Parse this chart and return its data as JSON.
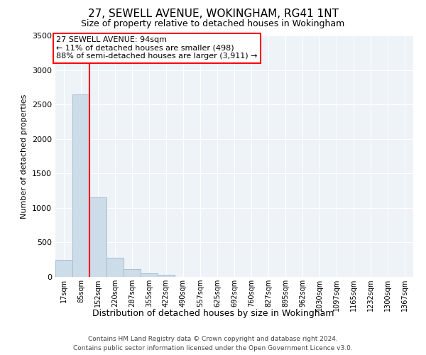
{
  "title": "27, SEWELL AVENUE, WOKINGHAM, RG41 1NT",
  "subtitle": "Size of property relative to detached houses in Wokingham",
  "xlabel": "Distribution of detached houses by size in Wokingham",
  "ylabel": "Number of detached properties",
  "categories": [
    "17sqm",
    "85sqm",
    "152sqm",
    "220sqm",
    "287sqm",
    "355sqm",
    "422sqm",
    "490sqm",
    "557sqm",
    "625sqm",
    "692sqm",
    "760sqm",
    "827sqm",
    "895sqm",
    "962sqm",
    "1030sqm",
    "1097sqm",
    "1165sqm",
    "1232sqm",
    "1300sqm",
    "1367sqm"
  ],
  "values": [
    250,
    2650,
    1150,
    280,
    110,
    50,
    30,
    0,
    0,
    0,
    0,
    0,
    0,
    0,
    0,
    0,
    0,
    0,
    0,
    0,
    0
  ],
  "bar_color": "#cddce9",
  "bar_edgecolor": "#a0b8cc",
  "vline_x_index": 1.5,
  "vline_color": "red",
  "annotation_text": "27 SEWELL AVENUE: 94sqm\n← 11% of detached houses are smaller (498)\n88% of semi-detached houses are larger (3,911) →",
  "annotation_box_color": "white",
  "annotation_box_edgecolor": "red",
  "ylim": [
    0,
    3500
  ],
  "yticks": [
    0,
    500,
    1000,
    1500,
    2000,
    2500,
    3000,
    3500
  ],
  "title_fontsize": 11,
  "subtitle_fontsize": 9,
  "tick_fontsize": 8,
  "ylabel_fontsize": 8,
  "footer_line1": "Contains HM Land Registry data © Crown copyright and database right 2024.",
  "footer_line2": "Contains public sector information licensed under the Open Government Licence v3.0.",
  "background_color": "#eef3f8",
  "grid_color": "white",
  "annotation_fontsize": 8
}
